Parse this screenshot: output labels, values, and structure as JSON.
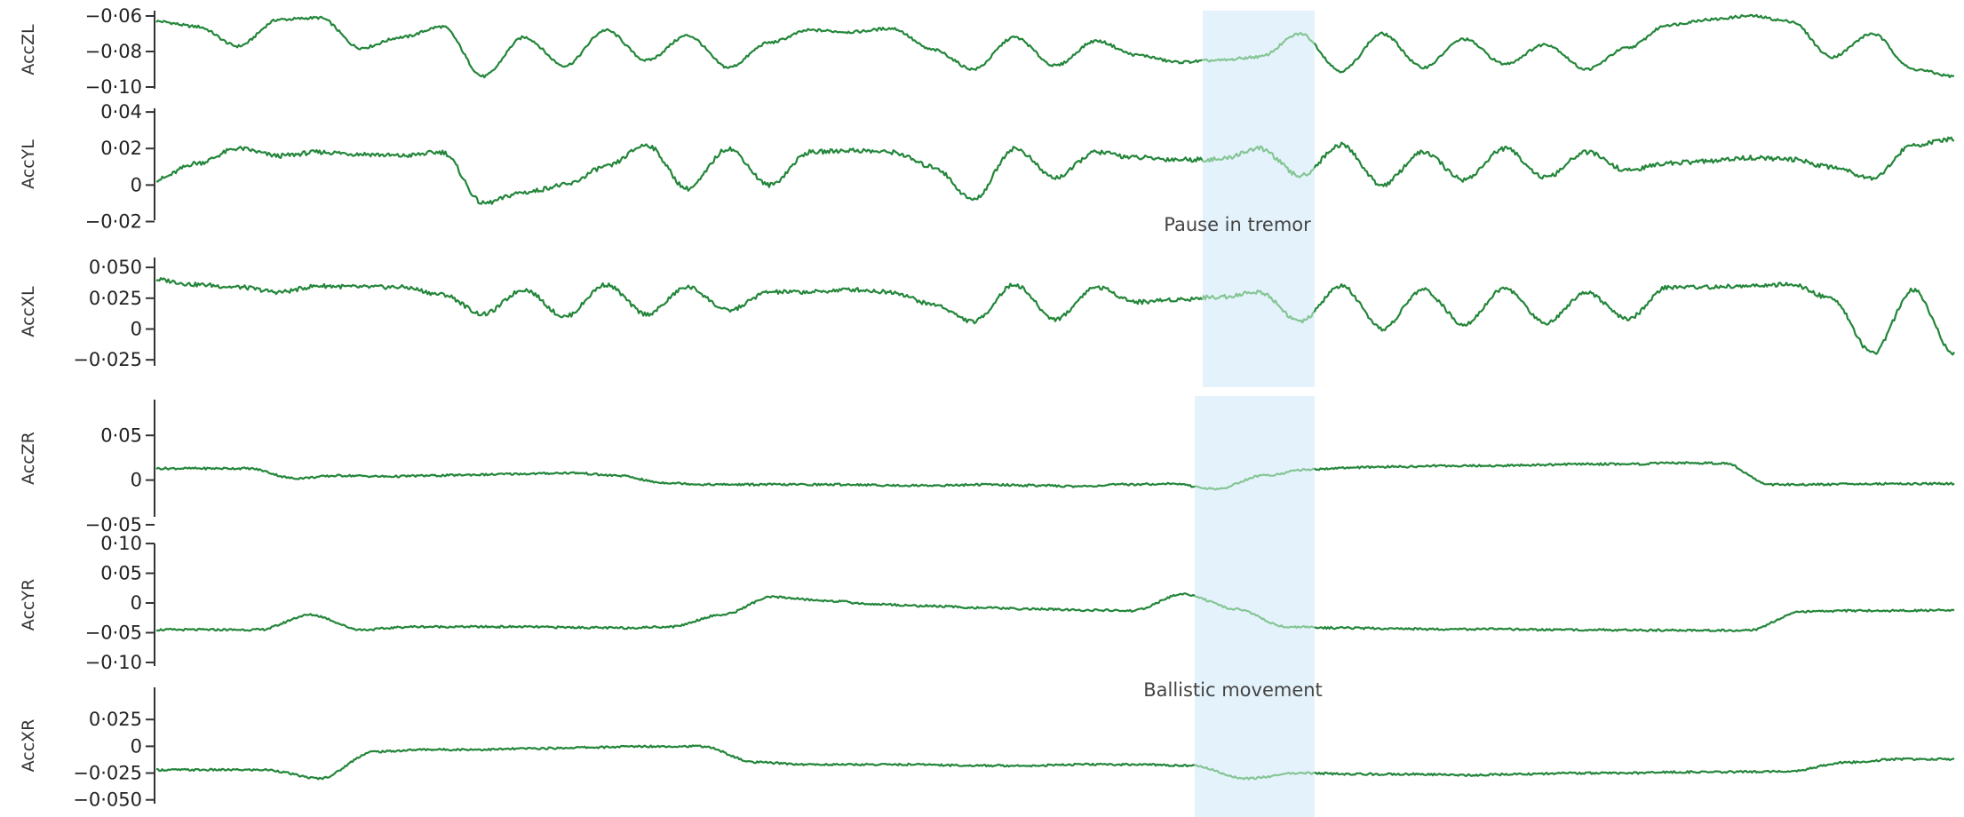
{
  "chart_data": [
    {
      "type": "line",
      "ylabel": "AccZL",
      "yticks": [
        "−0·06",
        "−0·08",
        "−0·10"
      ],
      "ytick_values": [
        -0.06,
        -0.08,
        -0.1
      ],
      "ylim": [
        -0.101,
        -0.057
      ],
      "series": [
        {
          "color": "#23863a",
          "values": [
            -0.063,
            -0.066,
            -0.077,
            -0.062,
            -0.061,
            -0.078,
            -0.072,
            -0.066,
            -0.094,
            -0.072,
            -0.088,
            -0.068,
            -0.085,
            -0.071,
            -0.089,
            -0.075,
            -0.068,
            -0.069,
            -0.067,
            -0.079,
            -0.09,
            -0.072,
            -0.088,
            -0.074,
            -0.082,
            -0.086,
            -0.085,
            -0.083,
            -0.07,
            -0.091,
            -0.07,
            -0.089,
            -0.073,
            -0.087,
            -0.076,
            -0.09,
            -0.078,
            -0.065,
            -0.062,
            -0.06,
            -0.063,
            -0.083,
            -0.07,
            -0.09,
            -0.094
          ]
        }
      ]
    },
    {
      "type": "line",
      "ylabel": "AccYL",
      "yticks": [
        "0·04",
        "0·02",
        "0",
        "−0·02"
      ],
      "ytick_values": [
        0.04,
        0.02,
        0,
        -0.02
      ],
      "ylim": [
        -0.029,
        0.042
      ],
      "series": [
        {
          "color": "#23863a",
          "values": [
            0.003,
            0.012,
            0.02,
            0.016,
            0.018,
            0.017,
            0.016,
            0.018,
            -0.01,
            -0.004,
            0.0,
            0.01,
            0.022,
            -0.002,
            0.02,
            0.0,
            0.018,
            0.019,
            0.018,
            0.01,
            -0.008,
            0.02,
            0.004,
            0.018,
            0.015,
            0.014,
            0.014,
            0.02,
            0.005,
            0.022,
            0.0,
            0.018,
            0.003,
            0.02,
            0.004,
            0.018,
            0.008,
            0.012,
            0.013,
            0.015,
            0.014,
            0.01,
            0.004,
            0.022,
            0.025
          ]
        }
      ]
    },
    {
      "type": "line",
      "ylabel": "AccXL",
      "yticks": [
        "0·050",
        "0·025",
        "0",
        "−0·025"
      ],
      "ytick_values": [
        0.05,
        0.025,
        0,
        -0.025
      ],
      "ylim": [
        -0.04,
        0.058
      ],
      "series": [
        {
          "color": "#23863a",
          "values": [
            0.04,
            0.036,
            0.034,
            0.03,
            0.035,
            0.034,
            0.034,
            0.028,
            0.012,
            0.032,
            0.01,
            0.036,
            0.012,
            0.034,
            0.015,
            0.03,
            0.03,
            0.032,
            0.03,
            0.02,
            0.006,
            0.036,
            0.008,
            0.034,
            0.022,
            0.024,
            0.026,
            0.03,
            0.006,
            0.035,
            0.0,
            0.032,
            0.004,
            0.033,
            0.005,
            0.03,
            0.008,
            0.034,
            0.034,
            0.035,
            0.036,
            0.025,
            -0.02,
            0.032,
            -0.02
          ]
        }
      ]
    },
    {
      "type": "line",
      "ylabel": "AccZR",
      "yticks": [
        "0·05",
        "0",
        "−0·05"
      ],
      "ytick_values": [
        0.05,
        0,
        -0.05
      ],
      "ylim": [
        -0.063,
        0.09
      ],
      "series": [
        {
          "color": "#23863a",
          "values": [
            0.013,
            0.013,
            0.013,
            0.002,
            0.005,
            0.004,
            0.005,
            0.006,
            0.007,
            0.008,
            0.005,
            -0.003,
            -0.005,
            -0.005,
            -0.005,
            -0.005,
            -0.006,
            -0.006,
            -0.005,
            -0.006,
            -0.007,
            -0.005,
            -0.004,
            -0.01,
            0.005,
            0.012,
            0.014,
            0.015,
            0.016,
            0.016,
            0.017,
            0.018,
            0.018,
            0.019,
            0.019,
            -0.005,
            -0.005,
            -0.004,
            -0.004,
            -0.004
          ]
        }
      ]
    },
    {
      "type": "line",
      "ylabel": "AccYR",
      "yticks": [
        "0·10",
        "0·05",
        "0",
        "−0·05",
        "−0·10"
      ],
      "ytick_values": [
        0.1,
        0.05,
        0,
        -0.05,
        -0.1
      ],
      "ylim": [
        -0.115,
        0.115
      ],
      "series": [
        {
          "color": "#23863a",
          "values": [
            -0.045,
            -0.045,
            -0.045,
            -0.02,
            -0.045,
            -0.04,
            -0.04,
            -0.04,
            -0.041,
            -0.042,
            -0.04,
            -0.02,
            0.01,
            0.004,
            -0.002,
            -0.005,
            -0.008,
            -0.01,
            -0.012,
            -0.013,
            0.015,
            -0.01,
            -0.04,
            -0.042,
            -0.043,
            -0.044,
            -0.044,
            -0.045,
            -0.045,
            -0.046,
            -0.046,
            -0.046,
            -0.015,
            -0.013,
            -0.013,
            -0.012
          ]
        }
      ]
    },
    {
      "type": "line",
      "ylabel": "AccXR",
      "yticks": [
        "0·025",
        "0",
        "−0·025",
        "−0·050"
      ],
      "ytick_values": [
        0.025,
        0,
        -0.025,
        -0.05
      ],
      "ylim": [
        -0.066,
        0.06
      ],
      "series": [
        {
          "color": "#23863a",
          "values": [
            -0.022,
            -0.022,
            -0.022,
            -0.03,
            -0.005,
            -0.003,
            -0.003,
            -0.002,
            -0.001,
            0.0,
            0.0,
            -0.015,
            -0.017,
            -0.017,
            -0.017,
            -0.018,
            -0.018,
            -0.017,
            -0.017,
            -0.018,
            -0.03,
            -0.025,
            -0.026,
            -0.026,
            -0.027,
            -0.026,
            -0.025,
            -0.025,
            -0.024,
            -0.024,
            -0.023,
            -0.015,
            -0.012,
            -0.012
          ]
        }
      ]
    }
  ],
  "annotations": {
    "pause": "Pause in tremor",
    "ballistic": "Ballistic movement"
  },
  "colors": {
    "trace": "#23863a",
    "trace_highlight": "#86c596",
    "highlight_band": "#e4f3fb"
  }
}
